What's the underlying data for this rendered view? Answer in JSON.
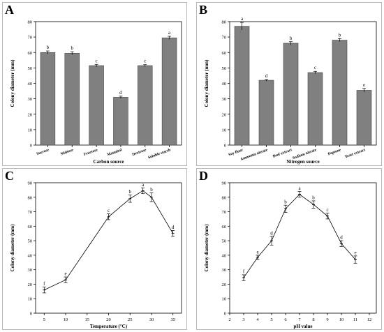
{
  "chart_data": [
    {
      "panel": "A",
      "type": "bar",
      "xlabel": "Carbon source",
      "ylabel": "Colony diameter (mm)",
      "ylim": [
        0,
        80
      ],
      "yticks": [
        0,
        10,
        20,
        30,
        40,
        50,
        60,
        70,
        80
      ],
      "categories": [
        "Sucrose",
        "Maltose",
        "Fructose",
        "Mannitol",
        "Dextrose",
        "Soluble starch"
      ],
      "values": [
        60,
        59.5,
        51.5,
        31,
        51.5,
        69.5
      ],
      "errors": [
        1,
        1,
        0.8,
        0.7,
        0.6,
        1
      ],
      "letters": [
        "b",
        "b",
        "c",
        "d",
        "c",
        "a"
      ]
    },
    {
      "panel": "B",
      "type": "bar",
      "xlabel": "Nitrogen source",
      "ylabel": "Colony diameter (mm)",
      "ylim": [
        0,
        80
      ],
      "yticks": [
        0,
        10,
        20,
        30,
        40,
        50,
        60,
        70,
        80
      ],
      "categories": [
        "Soy flour",
        "Ammonia nitrate",
        "Beef extract",
        "Sodium nitrate",
        "Peptone",
        "Yeast extract"
      ],
      "values": [
        77,
        42,
        66,
        47,
        68,
        35.5
      ],
      "errors": [
        2.5,
        0.5,
        1,
        0.8,
        1,
        1.2
      ],
      "letters": [
        "a",
        "d",
        "b",
        "c",
        "b",
        "e"
      ]
    },
    {
      "panel": "C",
      "type": "line",
      "xlabel": "Temperature (°C)",
      "ylabel": "Colony diameter (mm)",
      "xlim": [
        3,
        37
      ],
      "xticks": [
        5,
        10,
        15,
        20,
        25,
        30,
        35
      ],
      "ylim": [
        0,
        90
      ],
      "yticks": [
        0,
        10,
        20,
        30,
        40,
        50,
        60,
        70,
        80,
        90
      ],
      "x": [
        5,
        10,
        20,
        25,
        28,
        30,
        35
      ],
      "values": [
        16,
        23,
        66.5,
        79,
        84.5,
        80,
        55
      ],
      "errors": [
        2,
        2,
        2,
        2.5,
        2,
        3,
        2
      ],
      "letters": [
        "f",
        "e",
        "c",
        "b",
        "a",
        "b",
        "d"
      ]
    },
    {
      "panel": "D",
      "type": "line",
      "xlabel": "pH value",
      "ylabel": "Colony diameter (mm)",
      "xlim": [
        2,
        12.5
      ],
      "xticks": [
        2,
        3,
        4,
        5,
        6,
        7,
        8,
        9,
        10,
        11,
        12
      ],
      "ylim": [
        0,
        90
      ],
      "yticks": [
        0,
        10,
        20,
        30,
        40,
        50,
        60,
        70,
        80,
        90
      ],
      "x": [
        3,
        4,
        5,
        6,
        7,
        8,
        9,
        10,
        11
      ],
      "values": [
        24.5,
        38.5,
        50,
        72,
        82,
        75,
        67,
        48,
        37
      ],
      "errors": [
        2,
        1.5,
        3,
        2.5,
        2,
        2.5,
        2,
        2,
        2.5
      ],
      "letters": [
        "f",
        "e",
        "d",
        "b",
        "a",
        "b",
        "c",
        "d",
        "e"
      ]
    }
  ]
}
